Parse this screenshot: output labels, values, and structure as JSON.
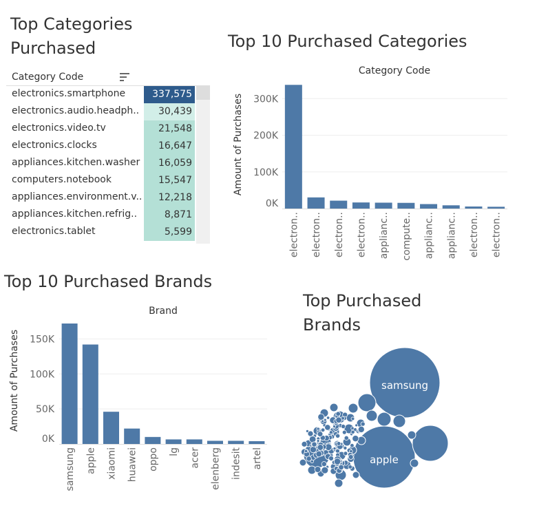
{
  "top_categories_table": {
    "title_line1": "Top Categories",
    "title_line2": "Purchased",
    "column_header": "Category Code",
    "rows": [
      {
        "category": "electronics.smartphone",
        "value": "337,575"
      },
      {
        "category": "electronics.audio.headph..",
        "value": "30,439"
      },
      {
        "category": "electronics.video.tv",
        "value": "21,548"
      },
      {
        "category": "electronics.clocks",
        "value": "16,647"
      },
      {
        "category": "appliances.kitchen.washer",
        "value": "16,059"
      },
      {
        "category": "computers.notebook",
        "value": "15,547"
      },
      {
        "category": "appliances.environment.v..",
        "value": "12,218"
      },
      {
        "category": "appliances.kitchen.refrig..",
        "value": "8,871"
      },
      {
        "category": "electronics.tablet",
        "value": "5,599"
      }
    ],
    "colors": {
      "highlight": "#2e5b8c",
      "cell": "#b4e0d6",
      "cell_light": "#d2eee8"
    }
  },
  "chart_data": [
    {
      "type": "bar",
      "title": "Top 10 Purchased Categories",
      "subtitle": "Category Code",
      "ylabel": "Amount of Purchases",
      "categories": [
        "electron..",
        "electron..",
        "electron..",
        "electron..",
        "applianc..",
        "compute..",
        "applianc..",
        "applianc..",
        "electron..",
        "electron.."
      ],
      "values": [
        337575,
        30439,
        21548,
        16647,
        16059,
        15547,
        12218,
        8871,
        5599,
        4900
      ],
      "yticks": [
        0,
        100000,
        200000,
        300000
      ],
      "ytick_labels": [
        "0K",
        "100K",
        "200K",
        "300K"
      ],
      "ylim": [
        0,
        340000
      ],
      "color": "#4e79a7"
    },
    {
      "type": "bar",
      "title": "Top 10 Purchased Brands",
      "subtitle": "Brand",
      "ylabel": "Amount of Purchases",
      "categories": [
        "samsung",
        "apple",
        "xiaomi",
        "huawei",
        "oppo",
        "lg",
        "acer",
        "elenberg",
        "indesit",
        "artel"
      ],
      "values": [
        172000,
        142000,
        46000,
        22000,
        10000,
        6500,
        6500,
        4500,
        4500,
        4000
      ],
      "yticks": [
        0,
        50000,
        100000,
        150000
      ],
      "ytick_labels": [
        "0K",
        "50K",
        "100K",
        "150K"
      ],
      "ylim": [
        0,
        172000
      ],
      "color": "#4e79a7"
    },
    {
      "type": "bubble",
      "title_line1": "Top Purchased",
      "title_line2": "Brands",
      "labels": [
        "samsung",
        "apple"
      ],
      "color": "#4e79a7",
      "label_color": "#ffffff"
    }
  ]
}
